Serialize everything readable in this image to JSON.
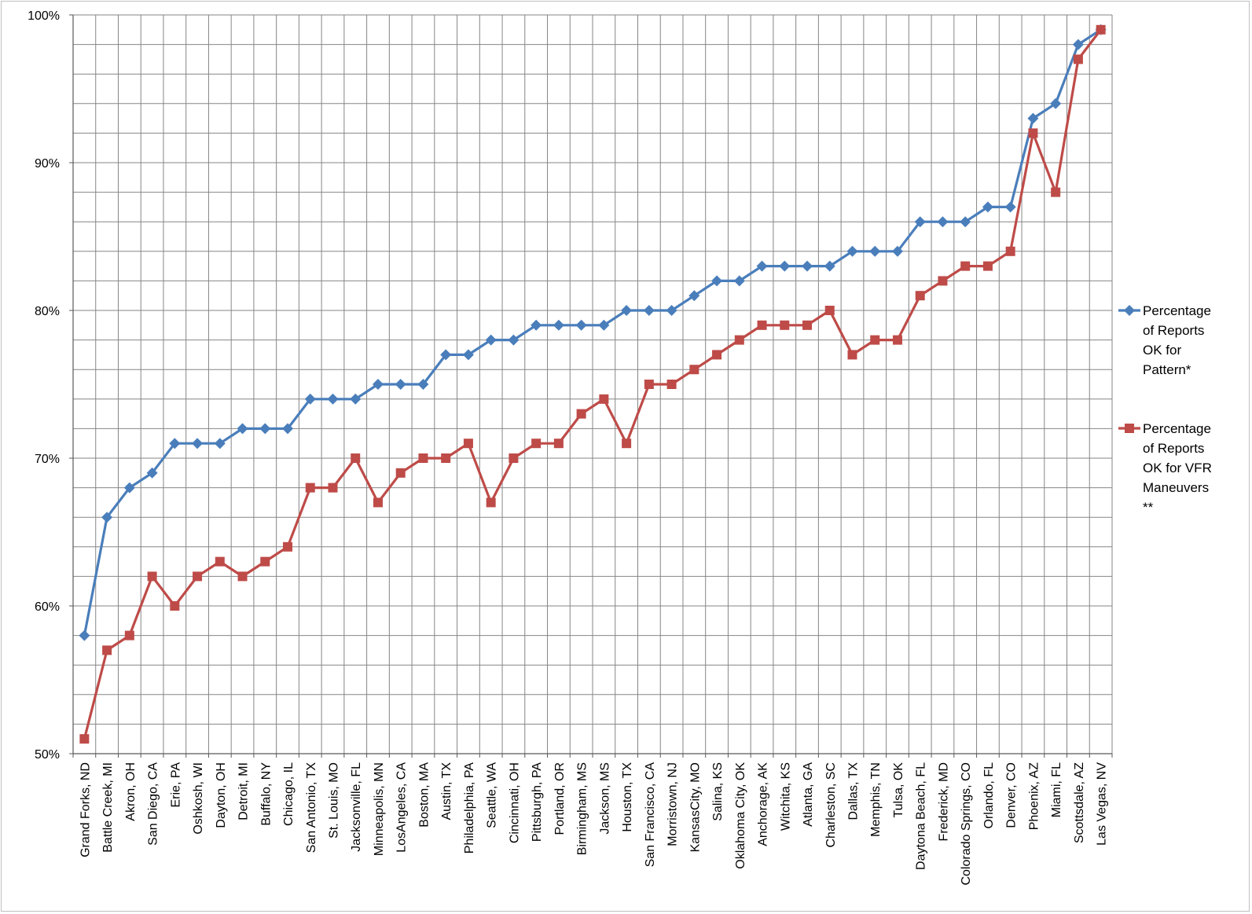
{
  "chart_data": {
    "type": "line",
    "title": "",
    "xlabel": "",
    "ylabel": "",
    "ylim": [
      0.5,
      1.0
    ],
    "yticks": [
      0.5,
      0.6,
      0.7,
      0.8,
      0.9,
      1.0
    ],
    "ytick_labels": [
      "50%",
      "60%",
      "70%",
      "80%",
      "90%",
      "100%"
    ],
    "grid": true,
    "legend_position": "right",
    "categories": [
      "Grand Forks, ND",
      "Battle Creek, MI",
      "Akron, OH",
      "San Diego, CA",
      "Erie, PA",
      "Oshkosh, WI",
      "Dayton, OH",
      "Detroit, MI",
      "Buffalo, NY",
      "Chicago, IL",
      "San Antonio, TX",
      "St. Louis, MO",
      "Jacksonville, FL",
      "Minneapolis, MN",
      "LosAngeles, CA",
      "Boston, MA",
      "Austin, TX",
      "Philadelphia, PA",
      "Seattle, WA",
      "Cincinnati, OH",
      "Pittsburgh, PA",
      "Portland, OR",
      "Birmingham, MS",
      "Jackson, MS",
      "Houston, TX",
      "San Francisco, CA",
      "Morristown, NJ",
      "KansasCity, MO",
      "Salina, KS",
      "Oklahoma City, OK",
      "Anchorage, AK",
      "Witchita, KS",
      "Atlanta, GA",
      "Charleston, SC",
      "Dallas, TX",
      "Memphis, TN",
      "Tulsa, OK",
      "Daytona Beach, FL",
      "Frederick, MD",
      "Colorado Springs, CO",
      "Orlando, FL",
      "Denver, CO",
      "Phoenix, AZ",
      "Miami, FL",
      "Scottsdale, AZ",
      "Las Vegas, NV"
    ],
    "series": [
      {
        "name_lines": [
          "Percentage",
          "of Reports",
          "OK for",
          "Pattern*"
        ],
        "color": "#4a7ebb",
        "marker": "diamond",
        "values": [
          0.58,
          0.66,
          0.68,
          0.69,
          0.71,
          0.71,
          0.71,
          0.72,
          0.72,
          0.72,
          0.74,
          0.74,
          0.74,
          0.75,
          0.75,
          0.75,
          0.77,
          0.77,
          0.78,
          0.78,
          0.79,
          0.79,
          0.79,
          0.79,
          0.8,
          0.8,
          0.8,
          0.81,
          0.82,
          0.82,
          0.83,
          0.83,
          0.83,
          0.83,
          0.84,
          0.84,
          0.84,
          0.86,
          0.86,
          0.86,
          0.87,
          0.87,
          0.93,
          0.94,
          0.98,
          0.99
        ]
      },
      {
        "name_lines": [
          "Percentage",
          "of Reports",
          "OK for VFR",
          "Maneuvers",
          "**"
        ],
        "color": "#be4b48",
        "marker": "square",
        "values": [
          0.51,
          0.57,
          0.58,
          0.62,
          0.6,
          0.62,
          0.63,
          0.62,
          0.63,
          0.64,
          0.68,
          0.68,
          0.7,
          0.67,
          0.69,
          0.7,
          0.7,
          0.71,
          0.67,
          0.7,
          0.71,
          0.71,
          0.73,
          0.74,
          0.71,
          0.75,
          0.75,
          0.76,
          0.77,
          0.78,
          0.79,
          0.79,
          0.79,
          0.8,
          0.77,
          0.78,
          0.78,
          0.81,
          0.82,
          0.83,
          0.83,
          0.84,
          0.92,
          0.88,
          0.97,
          0.99
        ]
      }
    ]
  }
}
